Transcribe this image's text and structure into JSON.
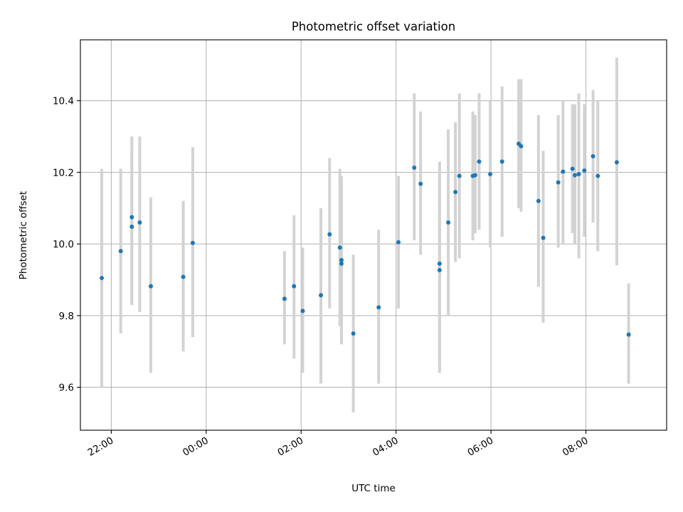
{
  "chart_data": {
    "type": "scatter",
    "title": "Photometric offset variation",
    "xlabel": "UTC time",
    "ylabel": "Photometric offset",
    "x_unit": "UTC time, previous evening hours shown as 21:xx-23:xx",
    "xlim": [
      "21:21",
      "09:42"
    ],
    "ylim": [
      9.48,
      10.57
    ],
    "x_ticks": [
      "22:00",
      "00:00",
      "02:00",
      "04:00",
      "06:00",
      "08:00"
    ],
    "y_ticks": [
      9.6,
      9.8,
      10.0,
      10.2,
      10.4
    ],
    "y_tick_labels": [
      "9.6",
      "9.8",
      "10.0",
      "10.2",
      "10.4"
    ],
    "grid": true,
    "marker_color": "#1f77b4",
    "errorbar_color": "#d3d3d3",
    "points": [
      {
        "t": "21:48",
        "y": 9.905,
        "lo": 9.6,
        "hi": 10.21
      },
      {
        "t": "22:12",
        "y": 9.98,
        "lo": 9.75,
        "hi": 10.21
      },
      {
        "t": "22:26",
        "y": 10.075,
        "lo": 9.83,
        "hi": 10.3
      },
      {
        "t": "22:26",
        "y": 10.048,
        "lo": 9.83,
        "hi": 10.26
      },
      {
        "t": "22:36",
        "y": 10.06,
        "lo": 9.81,
        "hi": 10.3
      },
      {
        "t": "22:50",
        "y": 9.882,
        "lo": 9.64,
        "hi": 10.13
      },
      {
        "t": "23:31",
        "y": 9.908,
        "lo": 9.7,
        "hi": 10.12
      },
      {
        "t": "23:43",
        "y": 10.003,
        "lo": 9.74,
        "hi": 10.27
      },
      {
        "t": "01:39",
        "y": 9.847,
        "lo": 9.72,
        "hi": 9.98
      },
      {
        "t": "01:51",
        "y": 9.882,
        "lo": 9.68,
        "hi": 10.08
      },
      {
        "t": "02:02",
        "y": 9.813,
        "lo": 9.64,
        "hi": 9.99
      },
      {
        "t": "02:25",
        "y": 9.857,
        "lo": 9.61,
        "hi": 10.1
      },
      {
        "t": "02:36",
        "y": 10.027,
        "lo": 9.82,
        "hi": 10.24
      },
      {
        "t": "02:49",
        "y": 9.99,
        "lo": 9.77,
        "hi": 10.21
      },
      {
        "t": "02:51",
        "y": 9.955,
        "lo": 9.72,
        "hi": 10.19
      },
      {
        "t": "02:51",
        "y": 9.945,
        "lo": 9.72,
        "hi": 10.17
      },
      {
        "t": "03:06",
        "y": 9.75,
        "lo": 9.53,
        "hi": 9.97
      },
      {
        "t": "03:38",
        "y": 9.823,
        "lo": 9.61,
        "hi": 10.04
      },
      {
        "t": "04:03",
        "y": 10.005,
        "lo": 9.82,
        "hi": 10.19
      },
      {
        "t": "04:23",
        "y": 10.213,
        "lo": 10.01,
        "hi": 10.42
      },
      {
        "t": "04:31",
        "y": 10.168,
        "lo": 9.97,
        "hi": 10.37
      },
      {
        "t": "04:55",
        "y": 9.945,
        "lo": 9.66,
        "hi": 10.23
      },
      {
        "t": "04:55",
        "y": 9.927,
        "lo": 9.64,
        "hi": 10.2
      },
      {
        "t": "05:06",
        "y": 10.06,
        "lo": 9.8,
        "hi": 10.32
      },
      {
        "t": "05:15",
        "y": 10.145,
        "lo": 9.95,
        "hi": 10.34
      },
      {
        "t": "05:20",
        "y": 10.19,
        "lo": 9.96,
        "hi": 10.42
      },
      {
        "t": "05:37",
        "y": 10.19,
        "lo": 10.01,
        "hi": 10.37
      },
      {
        "t": "05:40",
        "y": 10.192,
        "lo": 10.03,
        "hi": 10.36
      },
      {
        "t": "05:45",
        "y": 10.23,
        "lo": 10.04,
        "hi": 10.42
      },
      {
        "t": "05:59",
        "y": 10.195,
        "lo": 9.99,
        "hi": 10.4
      },
      {
        "t": "06:14",
        "y": 10.23,
        "lo": 10.02,
        "hi": 10.44
      },
      {
        "t": "06:35",
        "y": 10.28,
        "lo": 10.1,
        "hi": 10.46
      },
      {
        "t": "06:38",
        "y": 10.273,
        "lo": 10.09,
        "hi": 10.46
      },
      {
        "t": "07:00",
        "y": 10.12,
        "lo": 9.88,
        "hi": 10.36
      },
      {
        "t": "07:06",
        "y": 10.017,
        "lo": 9.78,
        "hi": 10.26
      },
      {
        "t": "07:25",
        "y": 10.172,
        "lo": 9.99,
        "hi": 10.36
      },
      {
        "t": "07:31",
        "y": 10.202,
        "lo": 10.0,
        "hi": 10.4
      },
      {
        "t": "07:43",
        "y": 10.21,
        "lo": 10.03,
        "hi": 10.39
      },
      {
        "t": "07:46",
        "y": 10.192,
        "lo": 10.0,
        "hi": 10.39
      },
      {
        "t": "07:51",
        "y": 10.195,
        "lo": 9.96,
        "hi": 10.42
      },
      {
        "t": "07:58",
        "y": 10.205,
        "lo": 10.02,
        "hi": 10.39
      },
      {
        "t": "08:09",
        "y": 10.245,
        "lo": 10.06,
        "hi": 10.43
      },
      {
        "t": "08:15",
        "y": 10.19,
        "lo": 9.98,
        "hi": 10.4
      },
      {
        "t": "08:39",
        "y": 10.228,
        "lo": 9.94,
        "hi": 10.52
      },
      {
        "t": "08:54",
        "y": 9.747,
        "lo": 9.61,
        "hi": 9.89
      }
    ]
  }
}
